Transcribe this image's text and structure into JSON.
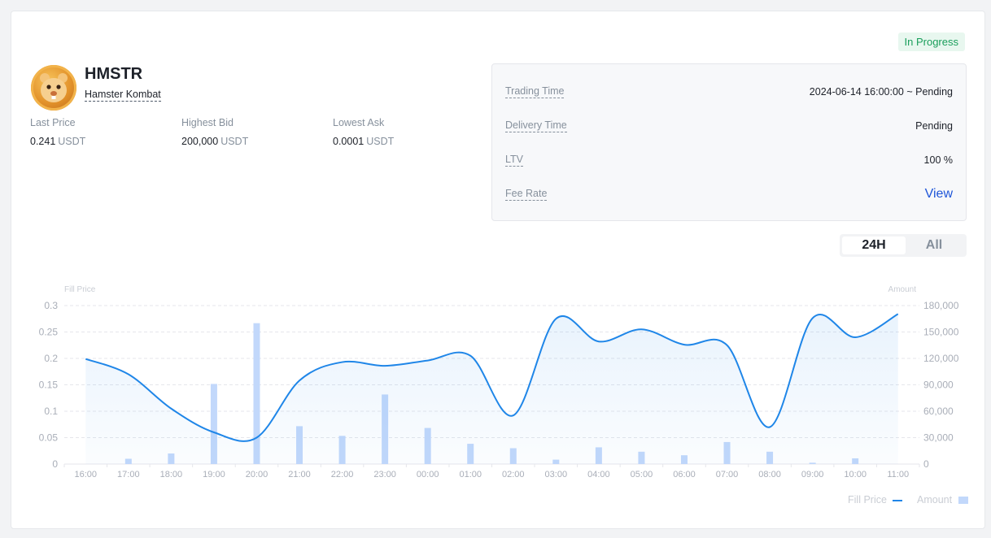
{
  "status": "In Progress",
  "token": {
    "symbol": "HMSTR",
    "name": "Hamster Kombat"
  },
  "stats": [
    {
      "label": "Last Price",
      "value": "0.241",
      "unit": "USDT"
    },
    {
      "label": "Highest Bid",
      "value": "200,000",
      "unit": "USDT"
    },
    {
      "label": "Lowest Ask",
      "value": "0.0001",
      "unit": "USDT"
    }
  ],
  "info": {
    "trading_time_label": "Trading Time",
    "trading_time_value": "2024-06-14 16:00:00 ~ Pending",
    "delivery_time_label": "Delivery Time",
    "delivery_time_value": "Pending",
    "ltv_label": "LTV",
    "ltv_value": "100 %",
    "fee_rate_label": "Fee Rate",
    "fee_rate_link": "View"
  },
  "toggle": {
    "active": "24H",
    "inactive": "All"
  },
  "colors": {
    "line": "#1f86e8",
    "bar": "#c2d8fb",
    "accent": "#1e55d8",
    "status": "#1a9e5b"
  },
  "chart_data": {
    "type": "line",
    "ylabel": "Fill Price",
    "y2label": "Amount",
    "categories": [
      "16:00",
      "17:00",
      "18:00",
      "19:00",
      "20:00",
      "21:00",
      "22:00",
      "23:00",
      "00:00",
      "01:00",
      "02:00",
      "03:00",
      "04:00",
      "05:00",
      "06:00",
      "07:00",
      "08:00",
      "09:00",
      "10:00",
      "11:00"
    ],
    "y_ticks": [
      "0",
      "0.05",
      "0.1",
      "0.15",
      "0.2",
      "0.25",
      "0.3"
    ],
    "y2_ticks": [
      "0",
      "30,000",
      "60,000",
      "90,000",
      "120,000",
      "150,000",
      "180,000"
    ],
    "ylim": [
      0,
      0.3
    ],
    "y2lim": [
      0,
      180000
    ],
    "series": [
      {
        "name": "Fill Price",
        "type": "line",
        "values": [
          0.199,
          0.17,
          0.105,
          0.06,
          0.05,
          0.158,
          0.193,
          0.186,
          0.196,
          0.205,
          0.092,
          0.275,
          0.232,
          0.255,
          0.226,
          0.225,
          0.07,
          0.276,
          0.24,
          0.284
        ]
      },
      {
        "name": "Amount",
        "type": "bar",
        "values": [
          0,
          6000,
          12000,
          91000,
          160000,
          43000,
          32000,
          79000,
          41000,
          23000,
          18000,
          5000,
          19000,
          14000,
          10000,
          25000,
          14000,
          1500,
          6500,
          0
        ]
      }
    ],
    "grid": true,
    "legend": "bottom-right"
  }
}
